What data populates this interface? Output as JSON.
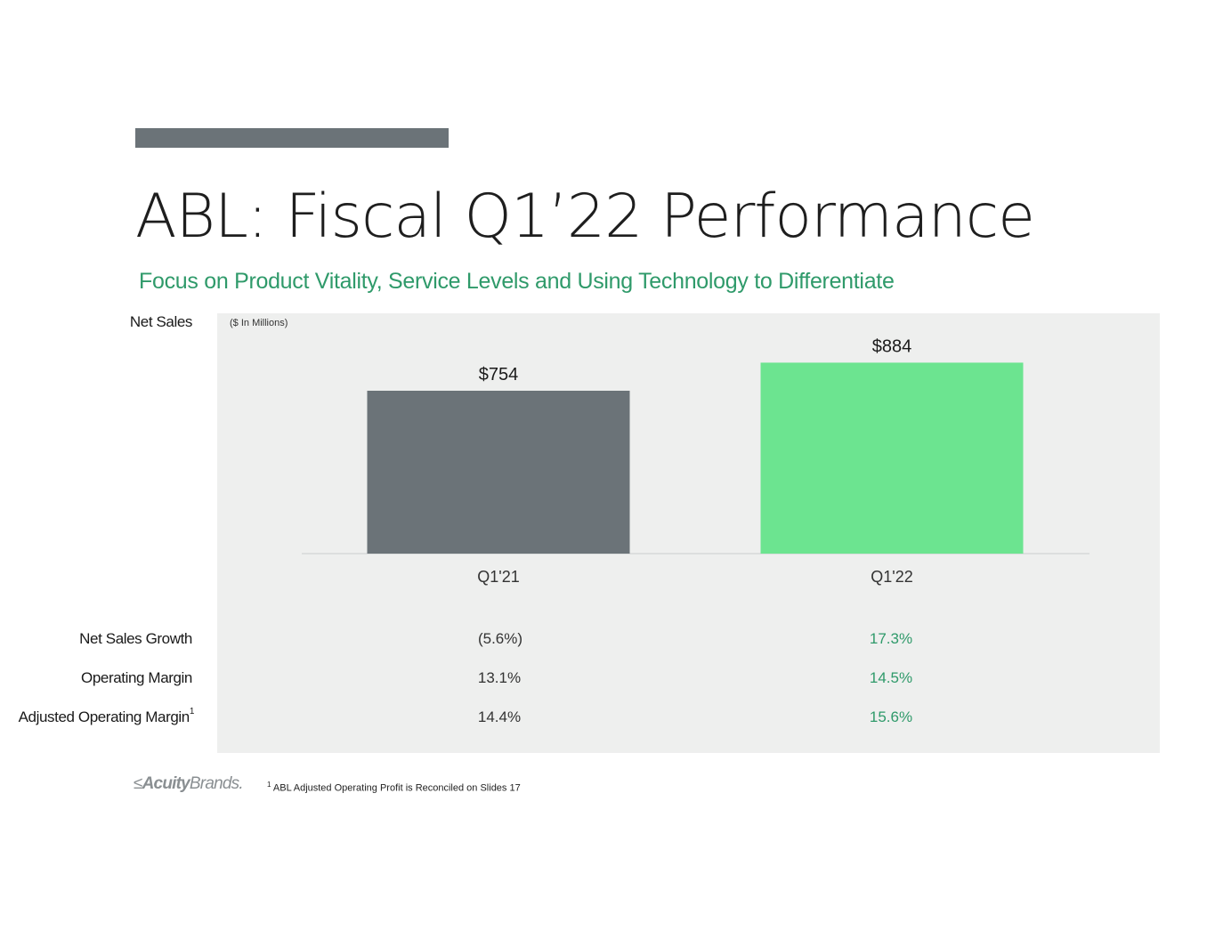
{
  "slide": {
    "title": "ABL: Fiscal Q1’22 Performance",
    "subtitle": "Focus on Product Vitality, Service Levels and Using Technology to Differentiate",
    "units_note": "($ In Millions)",
    "accent_color": "#6b7378",
    "subtitle_color": "#2f9a6a"
  },
  "labels": {
    "net_sales": "Net Sales",
    "net_sales_growth": "Net Sales Growth",
    "operating_margin": "Operating Margin",
    "adjusted_operating_margin": "Adjusted Operating Margin",
    "adjusted_operating_margin_sup": "1"
  },
  "metrics": {
    "q1_21": {
      "net_sales_growth": "(5.6%)",
      "operating_margin": "13.1%",
      "adjusted_operating_margin": "14.4%",
      "color": "#333333"
    },
    "q1_22": {
      "net_sales_growth": "17.3%",
      "operating_margin": "14.5%",
      "adjusted_operating_margin": "15.6%",
      "color": "#2f9a6a"
    }
  },
  "footer": {
    "logo_part1": "Acuity",
    "logo_part2": "Brands.",
    "logo_mark": "≤",
    "footnote_sup": "1",
    "footnote": "ABL Adjusted Operating Profit is Reconciled on Slides 17"
  },
  "chart_data": {
    "type": "bar",
    "categories": [
      "Q1'21",
      "Q1'22"
    ],
    "values": [
      754,
      884
    ],
    "data_labels": [
      "$754",
      "$884"
    ],
    "colors": [
      "#6b7378",
      "#6ce490"
    ],
    "title": "Net Sales",
    "ylabel": "($ In Millions)",
    "xlabel": "",
    "grid": false,
    "legend": "none"
  }
}
